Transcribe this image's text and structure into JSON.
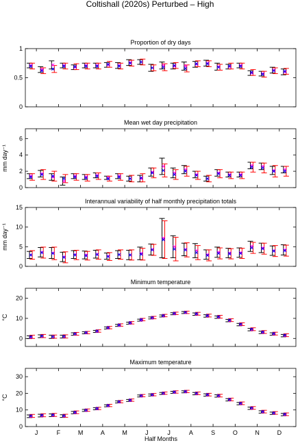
{
  "figure": {
    "title": "Coltishall (2020s) Perturbed – High",
    "xlabel": "Half Months",
    "month_labels": [
      "J",
      "F",
      "M",
      "A",
      "M",
      "J",
      "J",
      "A",
      "S",
      "O",
      "N",
      "D"
    ]
  },
  "colors": {
    "observed": "#000000",
    "scenario": "#ff0000",
    "marker_obs": "#ff00ff",
    "marker_scen": "#0000ff"
  },
  "chart_data": [
    {
      "type": "scatter",
      "title": "Proportion of dry days",
      "ylabel": "",
      "ylim": [
        0,
        1
      ],
      "yticks": [
        0,
        0.5,
        1
      ],
      "ytick_labels": [
        "0",
        "0.5",
        "1"
      ],
      "x": [
        1,
        2,
        3,
        4,
        5,
        6,
        7,
        8,
        9,
        10,
        11,
        12,
        13,
        14,
        15,
        16,
        17,
        18,
        19,
        20,
        21,
        22,
        23,
        24
      ],
      "series": [
        {
          "values": [
            0.71,
            0.64,
            0.72,
            0.71,
            0.68,
            0.71,
            0.71,
            0.72,
            0.71,
            0.76,
            0.77,
            0.67,
            0.71,
            0.7,
            0.7,
            0.73,
            0.75,
            0.69,
            0.69,
            0.71,
            0.58,
            0.57,
            0.63,
            0.6
          ],
          "err": [
            0.04,
            0.05,
            0.07,
            0.04,
            0.04,
            0.04,
            0.04,
            0.04,
            0.05,
            0.05,
            0.04,
            0.06,
            0.06,
            0.05,
            0.07,
            0.05,
            0.05,
            0.06,
            0.04,
            0.04,
            0.04,
            0.04,
            0.05,
            0.05
          ]
        },
        {
          "values": [
            0.7,
            0.62,
            0.65,
            0.7,
            0.69,
            0.7,
            0.7,
            0.73,
            0.7,
            0.75,
            0.77,
            0.67,
            0.68,
            0.71,
            0.66,
            0.74,
            0.74,
            0.68,
            0.7,
            0.7,
            0.59,
            0.56,
            0.62,
            0.61
          ],
          "err": [
            0.05,
            0.05,
            0.06,
            0.05,
            0.05,
            0.05,
            0.05,
            0.05,
            0.05,
            0.05,
            0.05,
            0.05,
            0.06,
            0.05,
            0.06,
            0.05,
            0.05,
            0.05,
            0.05,
            0.05,
            0.05,
            0.05,
            0.05,
            0.05
          ]
        }
      ]
    },
    {
      "type": "scatter",
      "title": "Mean wet day precipitation",
      "ylabel": "mm day⁻¹",
      "ylim": [
        0,
        7.2
      ],
      "yticks": [
        0,
        2,
        4,
        6
      ],
      "ytick_labels": [
        "0",
        "2",
        "4",
        "6"
      ],
      "x": [
        1,
        2,
        3,
        4,
        5,
        6,
        7,
        8,
        9,
        10,
        11,
        12,
        13,
        14,
        15,
        16,
        17,
        18,
        19,
        20,
        21,
        22,
        23,
        24
      ],
      "series": [
        {
          "values": [
            1.4,
            1.7,
            1.3,
            0.8,
            1.4,
            1.3,
            1.5,
            1.2,
            1.4,
            1.1,
            1.1,
            1.9,
            2.6,
            1.8,
            2.2,
            1.6,
            1.1,
            1.8,
            1.6,
            1.6,
            2.7,
            2.6,
            2.1,
            2.2
          ],
          "err": [
            0.3,
            0.4,
            0.4,
            0.5,
            0.3,
            0.3,
            0.3,
            0.2,
            0.3,
            0.3,
            0.4,
            0.5,
            1.0,
            0.6,
            0.5,
            0.4,
            0.3,
            0.4,
            0.3,
            0.3,
            0.4,
            0.4,
            0.5,
            0.4
          ]
        },
        {
          "values": [
            1.3,
            1.6,
            1.4,
            1.1,
            1.3,
            1.2,
            1.4,
            1.1,
            1.3,
            1.1,
            1.2,
            1.8,
            2.1,
            1.6,
            2.0,
            1.5,
            1.1,
            1.7,
            1.5,
            1.5,
            2.5,
            2.4,
            2.0,
            2.0
          ],
          "err": [
            0.4,
            0.6,
            0.6,
            0.5,
            0.4,
            0.4,
            0.4,
            0.3,
            0.4,
            0.4,
            0.5,
            0.6,
            0.8,
            0.6,
            0.6,
            0.5,
            0.4,
            0.5,
            0.4,
            0.4,
            0.6,
            0.6,
            0.7,
            0.6
          ]
        }
      ]
    },
    {
      "type": "scatter",
      "title": "Interannual variability of half monthly precipitation totals",
      "ylabel": "mm day⁻¹",
      "ylim": [
        0,
        15
      ],
      "yticks": [
        0,
        5,
        10,
        15
      ],
      "ytick_labels": [
        "0",
        "5",
        "10",
        "15"
      ],
      "x": [
        1,
        2,
        3,
        4,
        5,
        6,
        7,
        8,
        9,
        10,
        11,
        12,
        13,
        14,
        15,
        16,
        17,
        18,
        19,
        20,
        21,
        22,
        23,
        24
      ],
      "series": [
        {
          "values": [
            2.9,
            3.6,
            3.4,
            2.4,
            3.0,
            2.9,
            3.1,
            2.6,
            3.0,
            2.9,
            3.3,
            4.3,
            7.2,
            5.0,
            4.3,
            4.0,
            3.0,
            3.6,
            3.4,
            3.5,
            5.1,
            4.7,
            4.0,
            4.2
          ],
          "err": [
            0.9,
            1.2,
            1.4,
            1.2,
            1.0,
            1.0,
            1.0,
            0.8,
            1.0,
            1.2,
            1.6,
            1.4,
            5.0,
            2.8,
            1.6,
            1.8,
            1.2,
            1.3,
            1.2,
            1.2,
            1.3,
            1.2,
            1.2,
            1.3
          ]
        },
        {
          "values": [
            2.9,
            3.5,
            3.3,
            2.3,
            2.9,
            2.7,
            3.0,
            2.5,
            3.0,
            2.9,
            3.1,
            4.2,
            6.8,
            4.4,
            4.2,
            3.5,
            2.8,
            3.3,
            3.2,
            3.3,
            4.7,
            4.5,
            3.9,
            4.0
          ],
          "err": [
            1.1,
            1.4,
            1.6,
            1.4,
            1.2,
            1.1,
            1.2,
            1.0,
            1.2,
            1.3,
            1.5,
            1.4,
            4.8,
            3.0,
            1.8,
            1.8,
            1.4,
            1.4,
            1.3,
            1.3,
            1.4,
            1.4,
            1.4,
            1.4
          ]
        }
      ]
    },
    {
      "type": "scatter",
      "title": "Minimum temperature",
      "ylabel": "°C",
      "ylim": [
        -4,
        25
      ],
      "yticks": [
        0,
        10,
        20
      ],
      "ytick_labels": [
        "0",
        "10",
        "20"
      ],
      "x": [
        1,
        2,
        3,
        4,
        5,
        6,
        7,
        8,
        9,
        10,
        11,
        12,
        13,
        14,
        15,
        16,
        17,
        18,
        19,
        20,
        21,
        22,
        23,
        24
      ],
      "series": [
        {
          "values": [
            0.6,
            1.1,
            0.8,
            0.9,
            2.2,
            2.8,
            3.5,
            5.2,
            6.5,
            7.6,
            9.1,
            10.2,
            11.2,
            12.3,
            12.9,
            12.1,
            11.2,
            10.6,
            8.9,
            6.9,
            4.4,
            3.0,
            2.2,
            1.4
          ],
          "err": [
            0.7,
            0.7,
            0.8,
            0.7,
            0.6,
            0.5,
            0.5,
            0.5,
            0.5,
            0.5,
            0.5,
            0.5,
            0.5,
            0.5,
            0.5,
            0.6,
            0.6,
            0.6,
            0.6,
            0.6,
            0.6,
            0.6,
            0.6,
            0.6
          ]
        },
        {
          "values": [
            0.8,
            1.2,
            0.9,
            1.0,
            2.3,
            2.9,
            3.7,
            5.4,
            6.7,
            7.8,
            9.4,
            10.4,
            11.4,
            12.5,
            13.0,
            12.3,
            11.4,
            10.8,
            9.1,
            7.1,
            4.6,
            3.2,
            2.4,
            1.6
          ],
          "err": [
            0.8,
            0.8,
            0.8,
            0.8,
            0.7,
            0.6,
            0.6,
            0.6,
            0.6,
            0.6,
            0.6,
            0.6,
            0.6,
            0.6,
            0.6,
            0.7,
            0.7,
            0.7,
            0.7,
            0.7,
            0.7,
            0.7,
            0.7,
            0.7
          ]
        }
      ]
    },
    {
      "type": "scatter",
      "title": "Maximum temperature",
      "ylabel": "°C",
      "ylim": [
        0,
        35
      ],
      "yticks": [
        0,
        10,
        20,
        30
      ],
      "ytick_labels": [
        "0",
        "10",
        "20",
        "30"
      ],
      "x": [
        1,
        2,
        3,
        4,
        5,
        6,
        7,
        8,
        9,
        10,
        11,
        12,
        13,
        14,
        15,
        16,
        17,
        18,
        19,
        20,
        21,
        22,
        23,
        24
      ],
      "series": [
        {
          "values": [
            6.2,
            6.6,
            6.8,
            6.3,
            8.4,
            9.7,
            10.7,
            12.5,
            14.8,
            15.7,
            18.4,
            19.0,
            19.9,
            20.6,
            20.9,
            19.8,
            19.0,
            18.4,
            16.1,
            13.8,
            11.0,
            8.8,
            8.0,
            7.2
          ],
          "err": [
            0.8,
            0.8,
            0.8,
            0.8,
            0.7,
            0.6,
            0.6,
            0.6,
            0.6,
            0.6,
            0.6,
            0.6,
            0.6,
            0.6,
            0.6,
            0.7,
            0.7,
            0.7,
            0.7,
            0.7,
            0.7,
            0.7,
            0.7,
            0.7
          ]
        },
        {
          "values": [
            6.4,
            6.8,
            7.0,
            6.5,
            8.6,
            9.9,
            10.9,
            12.7,
            15.0,
            15.9,
            18.6,
            19.2,
            20.1,
            20.8,
            21.1,
            20.0,
            19.2,
            18.6,
            16.3,
            14.0,
            11.2,
            9.0,
            8.2,
            7.4
          ],
          "err": [
            0.9,
            0.9,
            0.9,
            0.9,
            0.8,
            0.7,
            0.7,
            0.7,
            0.7,
            0.7,
            0.7,
            0.7,
            0.7,
            0.7,
            0.7,
            0.8,
            0.8,
            0.8,
            0.8,
            0.8,
            0.8,
            0.8,
            0.8,
            0.8
          ]
        }
      ]
    }
  ]
}
